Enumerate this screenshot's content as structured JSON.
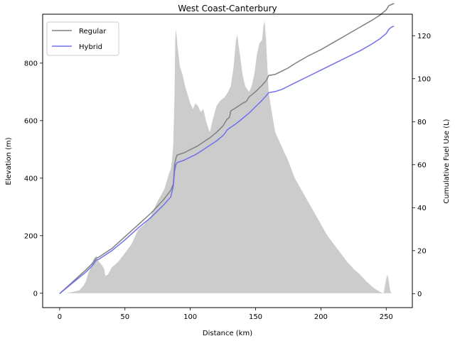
{
  "chart_data": {
    "type": "line",
    "title": "West Coast-Canterbury",
    "xlabel": "Distance (km)",
    "ylabel_left": "Elevation (m)",
    "ylabel_right": "Cumulative Fuel Use (L)",
    "xlim": [
      -13,
      270
    ],
    "ylim_left": [
      -50,
      970
    ],
    "ylim_right": [
      -6.5,
      130
    ],
    "x_ticks": [
      0,
      50,
      100,
      150,
      200,
      250
    ],
    "y_left_ticks": [
      0,
      200,
      400,
      600,
      800
    ],
    "y_right_ticks": [
      0,
      20,
      40,
      60,
      80,
      100,
      120
    ],
    "legend_position": "top-left",
    "elevation_color": "#cccccc",
    "elevation_profile": {
      "x": [
        0,
        5,
        10,
        15,
        18,
        20,
        22,
        24,
        26,
        28,
        30,
        32,
        34,
        35,
        37,
        40,
        45,
        50,
        55,
        60,
        65,
        70,
        75,
        80,
        82,
        84,
        85,
        86,
        87,
        88,
        88.5,
        89,
        89.5,
        90,
        91,
        92,
        94,
        96,
        98,
        100,
        102,
        104,
        106,
        108,
        110,
        112,
        114,
        115,
        117,
        120,
        123,
        126,
        129,
        131,
        133,
        135,
        136,
        137,
        138,
        140,
        142,
        145,
        147,
        149,
        151,
        153,
        155,
        156,
        157,
        158,
        159,
        160,
        162,
        165,
        170,
        175,
        180,
        185,
        190,
        195,
        200,
        205,
        210,
        215,
        220,
        225,
        230,
        235,
        240,
        245,
        248,
        250,
        251,
        252,
        253,
        254,
        255
      ],
      "elevation": [
        0,
        0,
        5,
        10,
        25,
        40,
        70,
        90,
        120,
        130,
        110,
        100,
        85,
        60,
        65,
        90,
        110,
        140,
        170,
        220,
        240,
        270,
        320,
        360,
        390,
        420,
        430,
        460,
        520,
        700,
        880,
        920,
        900,
        870,
        830,
        790,
        760,
        720,
        690,
        660,
        640,
        660,
        650,
        630,
        640,
        600,
        570,
        560,
        600,
        650,
        670,
        680,
        700,
        720,
        780,
        880,
        900,
        860,
        830,
        760,
        720,
        700,
        720,
        760,
        830,
        870,
        880,
        930,
        945,
        880,
        790,
        700,
        640,
        560,
        510,
        460,
        400,
        360,
        320,
        280,
        240,
        200,
        170,
        140,
        110,
        85,
        65,
        40,
        20,
        5,
        0,
        50,
        65,
        40,
        10,
        0,
        0
      ]
    },
    "series": [
      {
        "name": "Regular",
        "color": "#808080",
        "x": [
          0,
          10,
          20,
          25,
          28,
          30,
          35,
          40,
          50,
          60,
          70,
          80,
          85,
          87,
          88,
          89,
          90,
          95,
          100,
          105,
          110,
          115,
          120,
          125,
          127,
          128,
          130,
          131,
          135,
          140,
          143,
          145,
          150,
          155,
          158,
          160,
          165,
          170,
          175,
          180,
          190,
          200,
          210,
          220,
          230,
          240,
          245,
          250,
          252,
          254,
          256
        ],
        "y": [
          0,
          5.5,
          11,
          14,
          16.5,
          17,
          19,
          21,
          26.5,
          32,
          37.5,
          44,
          48,
          51,
          60,
          63,
          64.5,
          65.5,
          67,
          68.5,
          70.5,
          72.5,
          75,
          78,
          80,
          81,
          82,
          85,
          86.5,
          88.5,
          89.5,
          91.5,
          94,
          97,
          99,
          101.5,
          102,
          103.5,
          105,
          107,
          110.5,
          113.5,
          117,
          120.5,
          124,
          127.5,
          129.5,
          132,
          134,
          134.5,
          135
        ]
      },
      {
        "name": "Hybrid",
        "color": "#7070ee",
        "x": [
          0,
          10,
          20,
          25,
          28,
          30,
          35,
          40,
          50,
          60,
          70,
          80,
          85,
          87,
          88,
          89,
          90,
          95,
          100,
          105,
          110,
          115,
          120,
          125,
          127,
          128,
          130,
          135,
          140,
          145,
          150,
          155,
          158,
          160,
          165,
          170,
          175,
          180,
          190,
          200,
          210,
          220,
          230,
          240,
          245,
          250,
          252,
          254,
          256
        ],
        "y": [
          0,
          5,
          10,
          13,
          15.5,
          16,
          18,
          20,
          25,
          30.5,
          35.5,
          41.5,
          45,
          50,
          57,
          60,
          61,
          62,
          63.5,
          65,
          67,
          69,
          71,
          73.5,
          75,
          76,
          77,
          79,
          81.5,
          84,
          87,
          90,
          92,
          93.5,
          94,
          95,
          96.5,
          98,
          101,
          104,
          107,
          110,
          113,
          116.5,
          118.5,
          121,
          123,
          124,
          124.5
        ]
      }
    ]
  }
}
